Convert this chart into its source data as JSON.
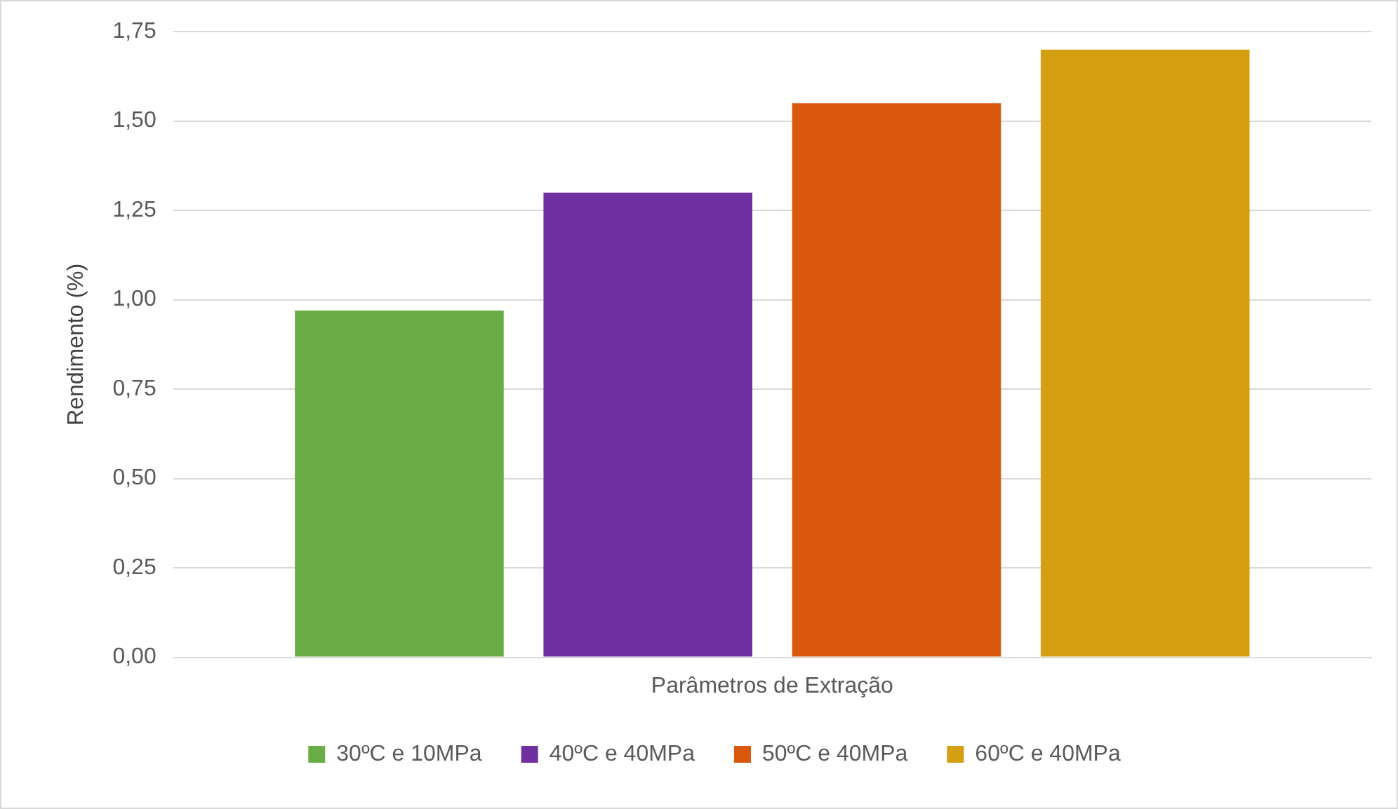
{
  "chart_data": {
    "type": "bar",
    "ylabel": "Rendimento (%)",
    "categories": [
      "Parâmetros de Extração"
    ],
    "series": [
      {
        "name": "30ºC e 10MPa",
        "color": "#6aac45",
        "values": [
          0.97
        ]
      },
      {
        "name": "40ºC e 40MPa",
        "color": "#7030a0",
        "values": [
          1.3
        ]
      },
      {
        "name": "50ºC e 40MPa",
        "color": "#d9580c",
        "values": [
          1.55
        ]
      },
      {
        "name": "60ºC e 40MPa",
        "color": "#d4a012",
        "values": [
          1.7
        ]
      }
    ],
    "ylim": [
      0,
      1.75
    ],
    "yticks": [
      {
        "value": 0,
        "label": "0,00"
      },
      {
        "value": 0.25,
        "label": "0,25"
      },
      {
        "value": 0.5,
        "label": "0,50"
      },
      {
        "value": 0.75,
        "label": "0,75"
      },
      {
        "value": 1,
        "label": "1,00"
      },
      {
        "value": 1.25,
        "label": "1,25"
      },
      {
        "value": 1.5,
        "label": "1,50"
      },
      {
        "value": 1.75,
        "label": "1,75"
      }
    ],
    "grid": "y",
    "legend": "bottom"
  }
}
